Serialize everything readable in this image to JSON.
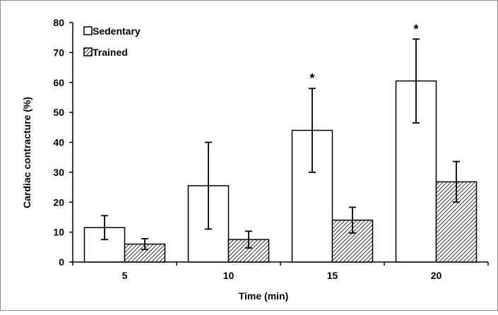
{
  "chart_data": {
    "type": "bar",
    "title": "",
    "xlabel": "Time (min)",
    "ylabel": "Cardiac contracture (%)",
    "ylim": [
      0,
      80
    ],
    "yticks": [
      0,
      10,
      20,
      30,
      40,
      50,
      60,
      70,
      80
    ],
    "categories": [
      "5",
      "10",
      "15",
      "20"
    ],
    "series": [
      {
        "name": "Sedentary",
        "values": [
          11.5,
          25.5,
          44,
          60.5
        ],
        "error": [
          4,
          14.5,
          14,
          14
        ],
        "fill": "#ffffff",
        "pattern": "none"
      },
      {
        "name": "Trained",
        "values": [
          6,
          7.5,
          14,
          26.8
        ],
        "error": [
          1.8,
          2.8,
          4.3,
          6.8
        ],
        "fill": "#ffffff",
        "pattern": "diagonal-hatch"
      }
    ],
    "annotations": [
      {
        "text": "*",
        "category": "15",
        "series": "Sedentary"
      },
      {
        "text": "*",
        "category": "20",
        "series": "Sedentary"
      }
    ],
    "legend": {
      "position": "top-left",
      "items": [
        "Sedentary",
        "Trained"
      ]
    },
    "grid": false,
    "colors": {
      "stroke": "#000000",
      "hatch": "#000000",
      "background": "#ffffff",
      "frame": "#8c8c8c"
    }
  }
}
